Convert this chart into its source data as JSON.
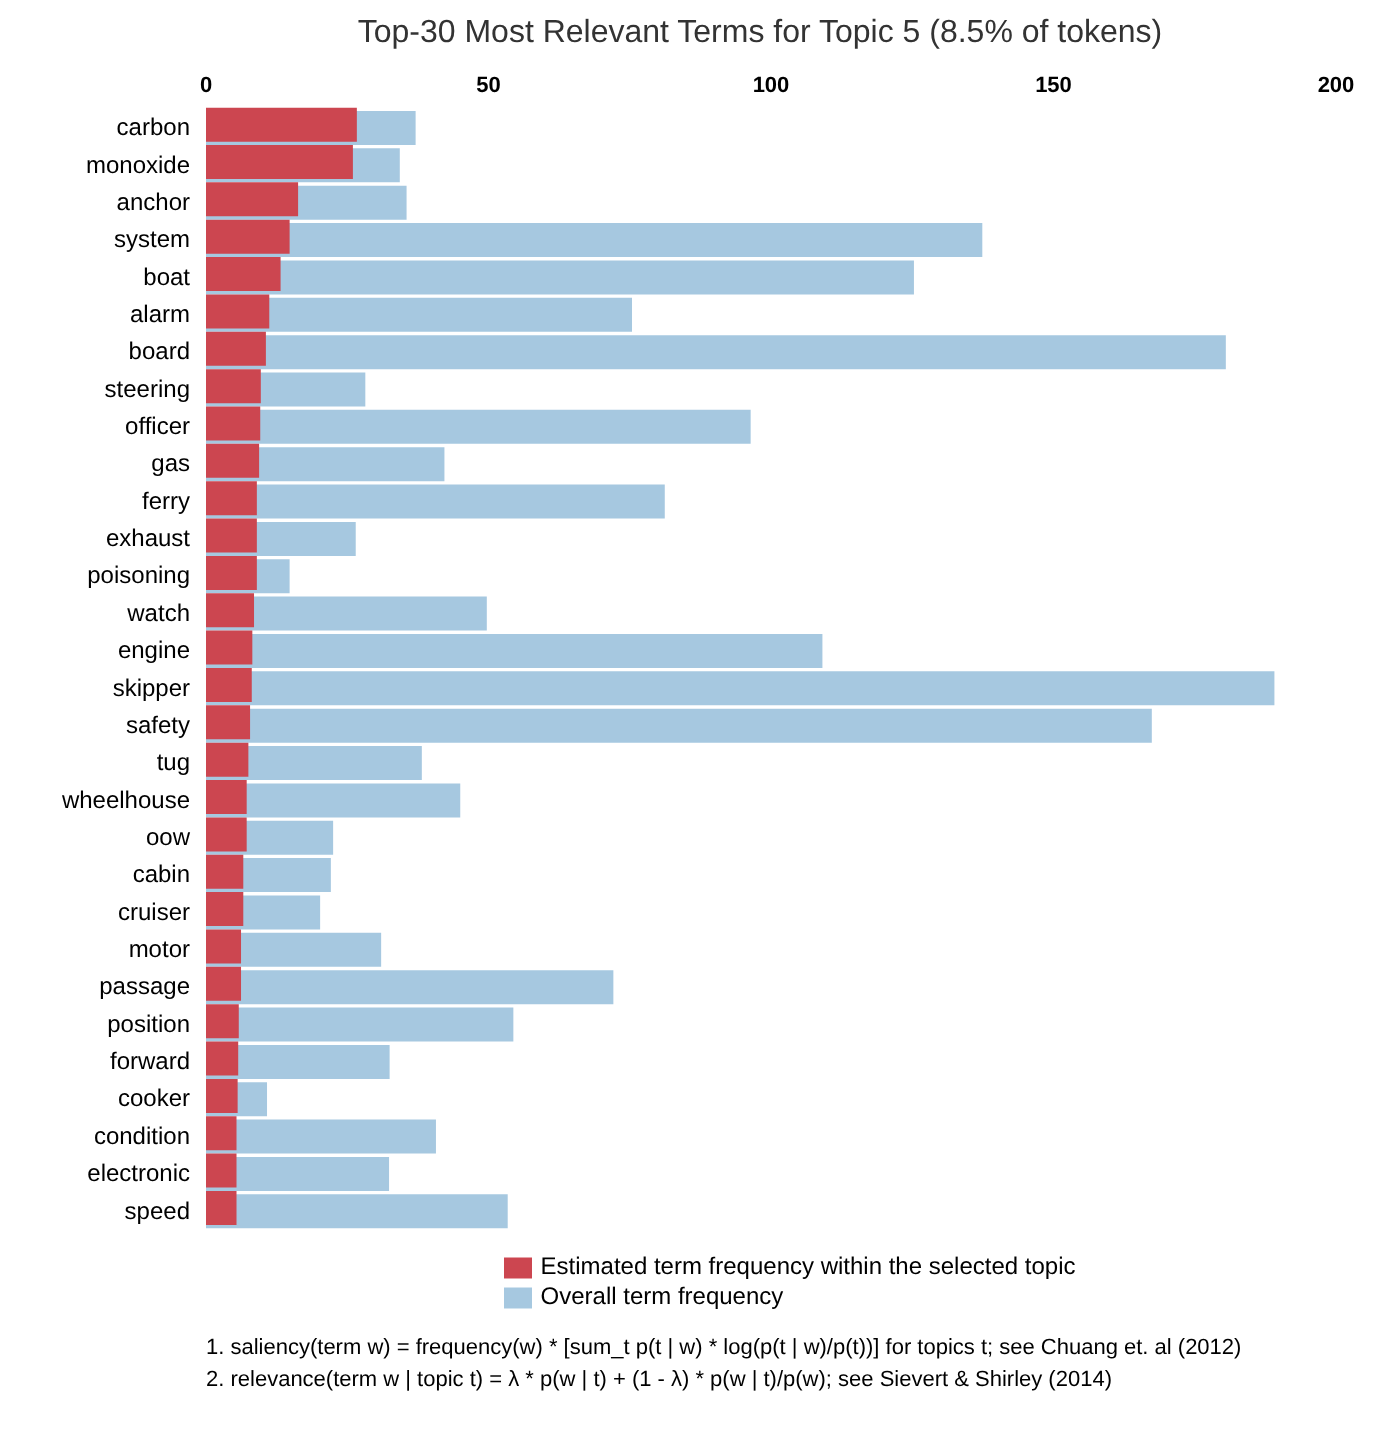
{
  "chart_data": {
    "type": "bar",
    "orientation": "horizontal",
    "title": "Top-30 Most Relevant Terms for Topic 5 (8.5% of tokens)",
    "categories": [
      "carbon",
      "monoxide",
      "anchor",
      "system",
      "boat",
      "alarm",
      "board",
      "steering",
      "officer",
      "gas",
      "ferry",
      "exhaust",
      "poisoning",
      "watch",
      "engine",
      "skipper",
      "safety",
      "tug",
      "wheelhouse",
      "oow",
      "cabin",
      "cruiser",
      "motor",
      "passage",
      "position",
      "forward",
      "cooker",
      "condition",
      "electronic",
      "speed"
    ],
    "series": [
      {
        "name": "Overall term frequency",
        "color": "#a6c8e0",
        "values": [
          37.1,
          34.3,
          35.5,
          137.4,
          125.3,
          75.4,
          180.5,
          28.2,
          96.4,
          42.2,
          81.2,
          26.5,
          14.8,
          49.7,
          109.1,
          189.1,
          167.4,
          38.2,
          45.0,
          22.5,
          22.1,
          20.2,
          31.0,
          72.1,
          54.4,
          32.5,
          10.8,
          40.7,
          32.4,
          53.4
        ]
      },
      {
        "name": "Estimated term frequency within the selected topic",
        "color": "#cc4650",
        "values": [
          26.7,
          26.0,
          16.3,
          14.8,
          13.2,
          11.2,
          10.6,
          9.7,
          9.6,
          9.4,
          9.0,
          9.0,
          9.0,
          8.5,
          8.2,
          8.1,
          7.8,
          7.5,
          7.2,
          7.2,
          6.6,
          6.6,
          6.2,
          6.2,
          5.8,
          5.7,
          5.6,
          5.4,
          5.4,
          5.4
        ]
      }
    ],
    "xlim": [
      0,
      200
    ],
    "xticks": [
      0,
      50,
      100,
      150,
      200
    ],
    "grid": false,
    "legend": "bottom",
    "annotations": [
      "1. saliency(term w) = frequency(w) * [sum_t p(t | w) * log(p(t | w)/p(t))] for topics t; see Chuang et. al (2012)",
      "2. relevance(term w | topic t) = λ * p(w | t) + (1 - λ) * p(w | t)/p(w); see Sievert & Shirley (2014)"
    ]
  }
}
